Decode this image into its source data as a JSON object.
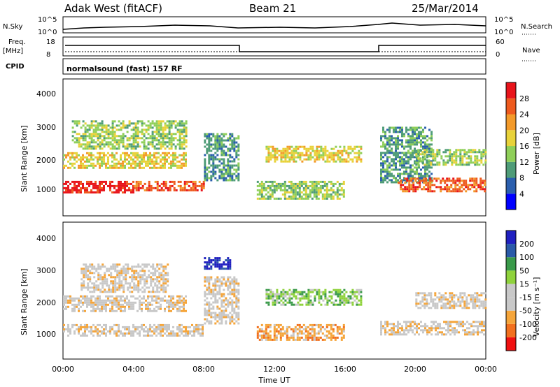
{
  "header": {
    "title": "Adak West (fitACF)",
    "beam": "Beam 21",
    "date": "25/Mar/2014"
  },
  "top_panels": {
    "nsky_label": "N.Sky",
    "nsky_ticks": [
      "10^5",
      "10^0"
    ],
    "nsearch_label": "N.Search",
    "nsearch_ticks": [
      "10^5",
      "10^0"
    ],
    "freq_label": "Freq.",
    "freq_unit": "[MHz]",
    "freq_ticks": [
      "18",
      "8"
    ],
    "nave_label": "Nave",
    "nave_ticks": [
      "60",
      "0"
    ],
    "cpid_label": "CPID",
    "cpid_text": "normalsound (fast) 157 RF"
  },
  "colors": {
    "power_scale": [
      "#0000ff",
      "#2b5fae",
      "#4f9c78",
      "#8fcf59",
      "#e8d23a",
      "#f39a2a",
      "#ee5a1e",
      "#e8141b"
    ],
    "velocity_scale": [
      "#f01010",
      "#f2701e",
      "#f5a53a",
      "#c8c8c8",
      "#c8c8c8",
      "#8fd23c",
      "#3a9a4a",
      "#2a5aa8",
      "#2020c0"
    ]
  },
  "chart_data": [
    {
      "type": "heatmap",
      "name": "power",
      "ylabel": "Slant Range [km]",
      "yticks": [
        "4000",
        "3000",
        "2000",
        "1000"
      ],
      "ylim": [
        200,
        4500
      ],
      "xlim_hours": [
        0,
        24
      ],
      "colorbar_label": "Power [dB]",
      "colorbar_ticks": [
        "28",
        "24",
        "20",
        "16",
        "12",
        "8",
        "4"
      ],
      "bands": [
        {
          "t0": 0.0,
          "t1": 4.0,
          "r0": 900,
          "r1": 1300,
          "level": 7
        },
        {
          "t0": 4.0,
          "t1": 8.0,
          "r0": 950,
          "r1": 1300,
          "level": 6
        },
        {
          "t0": 0.0,
          "t1": 7.0,
          "r0": 1700,
          "r1": 2200,
          "level": 4
        },
        {
          "t0": 0.5,
          "t1": 7.0,
          "r0": 2300,
          "r1": 3200,
          "level": 3
        },
        {
          "t0": 8.0,
          "t1": 10.0,
          "r0": 1300,
          "r1": 2800,
          "level": 2
        },
        {
          "t0": 11.5,
          "t1": 17.0,
          "r0": 1900,
          "r1": 2400,
          "level": 4
        },
        {
          "t0": 11.0,
          "t1": 16.0,
          "r0": 700,
          "r1": 1300,
          "level": 3
        },
        {
          "t0": 18.0,
          "t1": 21.0,
          "r0": 1200,
          "r1": 3000,
          "level": 2
        },
        {
          "t0": 19.0,
          "t1": 24.0,
          "r0": 950,
          "r1": 1400,
          "level": 6
        },
        {
          "t0": 20.0,
          "t1": 24.0,
          "r0": 1800,
          "r1": 2300,
          "level": 3
        }
      ]
    },
    {
      "type": "heatmap",
      "name": "velocity",
      "ylabel": "Slant Range [km]",
      "yticks": [
        "4000",
        "3000",
        "2000",
        "1000"
      ],
      "ylim": [
        200,
        4500
      ],
      "xlim_hours": [
        0,
        24
      ],
      "xticks": [
        "00:00",
        "04:00",
        "08:00",
        "12:00",
        "16:00",
        "20:00",
        "00:00"
      ],
      "xlabel": "Time UT",
      "colorbar_label": "Velocity [m s⁻¹]",
      "colorbar_ticks": [
        "200",
        "100",
        "50",
        "15",
        "-15",
        "-50",
        "-100",
        "-200"
      ],
      "bands": [
        {
          "t0": 0.0,
          "t1": 8.0,
          "r0": 900,
          "r1": 1300,
          "level": 3
        },
        {
          "t0": 0.0,
          "t1": 7.0,
          "r0": 1700,
          "r1": 2200,
          "level": 3
        },
        {
          "t0": 1.0,
          "t1": 6.0,
          "r0": 2300,
          "r1": 3200,
          "level": 3
        },
        {
          "t0": 8.0,
          "t1": 10.0,
          "r0": 1300,
          "r1": 2800,
          "level": 3
        },
        {
          "t0": 8.0,
          "t1": 9.5,
          "r0": 3000,
          "r1": 3400,
          "level": 8
        },
        {
          "t0": 11.5,
          "t1": 17.0,
          "r0": 1900,
          "r1": 2400,
          "level": 5
        },
        {
          "t0": 11.0,
          "t1": 16.0,
          "r0": 800,
          "r1": 1300,
          "level": 2
        },
        {
          "t0": 18.0,
          "t1": 24.0,
          "r0": 950,
          "r1": 1400,
          "level": 3
        },
        {
          "t0": 20.0,
          "t1": 24.0,
          "r0": 1800,
          "r1": 2300,
          "level": 3
        }
      ]
    }
  ]
}
